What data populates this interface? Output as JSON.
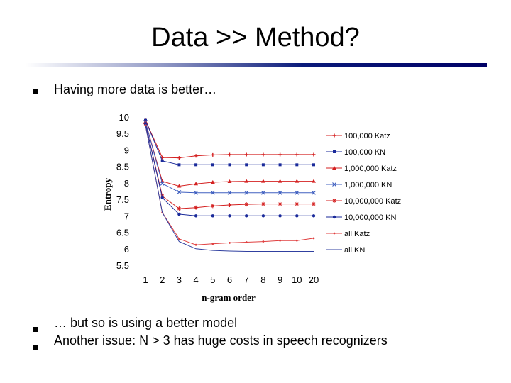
{
  "slide": {
    "title": "Data >> Method?",
    "bullets": [
      "Having more data is better…",
      "… but so is using a better model",
      "Another issue: N > 3 has huge costs in speech recognizers"
    ]
  },
  "chart_data": {
    "type": "line",
    "title": "",
    "xlabel": "n-gram order",
    "ylabel": "Entropy",
    "categories": [
      "1",
      "2",
      "3",
      "4",
      "5",
      "6",
      "7",
      "8",
      "9",
      "10",
      "20"
    ],
    "ylim": [
      5.5,
      10
    ],
    "yticks": [
      "10",
      "9.5",
      "9",
      "8.5",
      "8",
      "7.5",
      "7",
      "6.5",
      "6",
      "5.5"
    ],
    "grid": false,
    "legend_position": "right",
    "series": [
      {
        "name": "100,000 Katz",
        "color": "#d42020",
        "marker": "plus",
        "values": [
          9.9,
          8.77,
          8.76,
          8.82,
          8.85,
          8.86,
          8.86,
          8.86,
          8.86,
          8.86,
          8.86
        ]
      },
      {
        "name": "100,000 KN",
        "color": "#1a2a9a",
        "marker": "square",
        "values": [
          9.9,
          8.67,
          8.55,
          8.55,
          8.55,
          8.55,
          8.55,
          8.55,
          8.55,
          8.55,
          8.55
        ]
      },
      {
        "name": "1,000,000 Katz",
        "color": "#d42020",
        "marker": "triangle",
        "values": [
          9.85,
          8.05,
          7.9,
          7.97,
          8.02,
          8.04,
          8.05,
          8.05,
          8.05,
          8.05,
          8.05
        ]
      },
      {
        "name": "1,000,000 KN",
        "color": "#4060c0",
        "marker": "x",
        "values": [
          9.85,
          7.98,
          7.72,
          7.7,
          7.7,
          7.7,
          7.7,
          7.7,
          7.7,
          7.7,
          7.7
        ]
      },
      {
        "name": "10,000,000 Katz",
        "color": "#d42020",
        "marker": "star",
        "values": [
          9.8,
          7.6,
          7.22,
          7.25,
          7.3,
          7.33,
          7.35,
          7.36,
          7.36,
          7.36,
          7.36
        ]
      },
      {
        "name": "10,000,000 KN",
        "color": "#1a2a9a",
        "marker": "dot",
        "values": [
          9.8,
          7.55,
          7.05,
          7.0,
          7.0,
          7.0,
          7.0,
          7.0,
          7.0,
          7.0,
          7.0
        ]
      },
      {
        "name": "all Katz",
        "color": "#e04040",
        "marker": "dot-small",
        "values": [
          9.75,
          7.1,
          6.3,
          6.12,
          6.15,
          6.18,
          6.2,
          6.22,
          6.25,
          6.25,
          6.32
        ]
      },
      {
        "name": "all KN",
        "color": "#3040a0",
        "marker": "none",
        "values": [
          9.75,
          7.1,
          6.22,
          6.0,
          5.95,
          5.93,
          5.92,
          5.92,
          5.92,
          5.92,
          5.92
        ]
      }
    ]
  }
}
